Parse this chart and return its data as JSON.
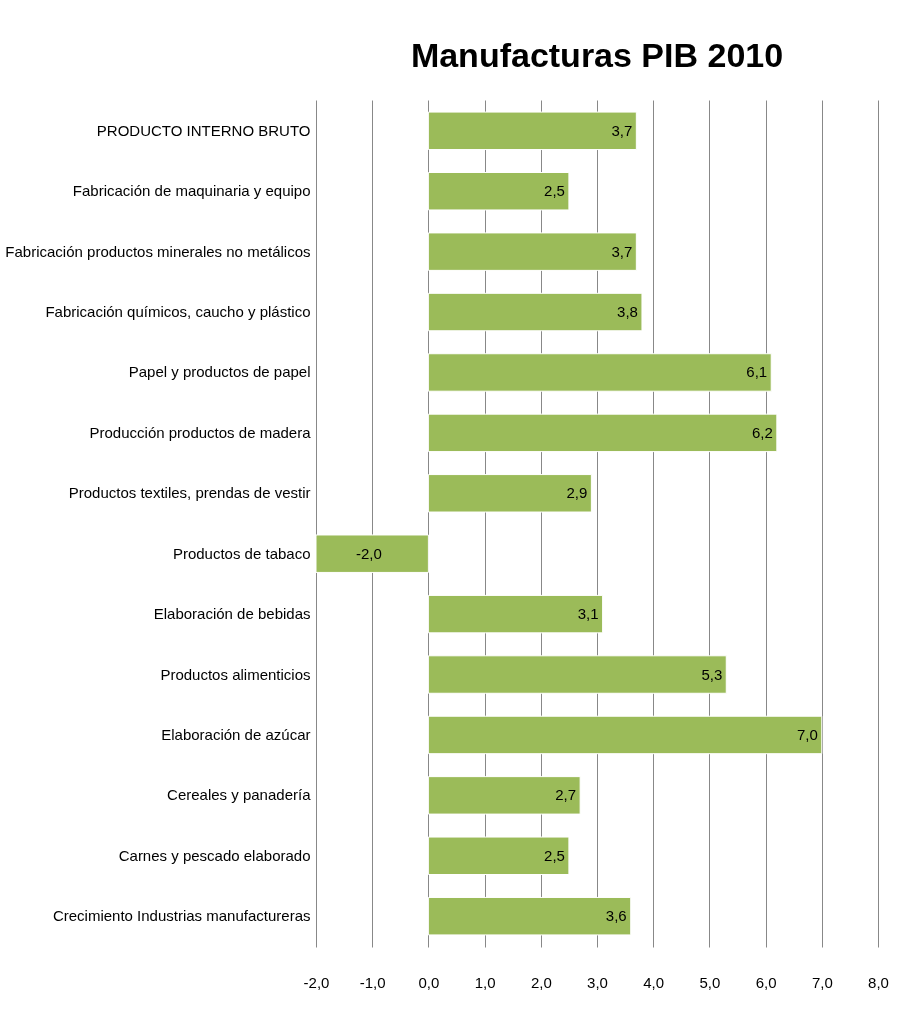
{
  "chart_data": {
    "type": "bar",
    "orientation": "horizontal",
    "title": "Manufacturas PIB 2010",
    "categories": [
      "PRODUCTO INTERNO BRUTO",
      "Fabricación de maquinaria y equipo",
      "Fabricación productos minerales no metálicos",
      "Fabricación químicos, caucho y plástico",
      "Papel y productos de papel",
      "Producción productos de madera",
      "Productos textiles, prendas de vestir",
      "Productos de tabaco",
      "Elaboración de bebidas",
      "Productos alimenticios",
      "Elaboración de azúcar",
      "Cereales y panadería",
      "Carnes y pescado elaborado",
      "Crecimiento Industrias manufactureras"
    ],
    "values": [
      3.7,
      2.5,
      3.7,
      3.8,
      6.1,
      6.2,
      2.9,
      -2.0,
      3.1,
      5.3,
      7.0,
      2.7,
      2.5,
      3.6
    ],
    "value_labels": [
      "3,7",
      "2,5",
      "3,7",
      "3,8",
      "6,1",
      "6,2",
      "2,9",
      "-2,0",
      "3,1",
      "5,3",
      "7,0",
      "2,7",
      "2,5",
      "3,6"
    ],
    "color": "#9bbb59",
    "xlim": [
      -2,
      8
    ],
    "xticks": [
      {
        "value": -2,
        "label": "-2,0"
      },
      {
        "value": -1,
        "label": "-1,0"
      },
      {
        "value": 0,
        "label": "0,0"
      },
      {
        "value": 1,
        "label": "1,0"
      },
      {
        "value": 2,
        "label": "2,0"
      },
      {
        "value": 3,
        "label": "3,0"
      },
      {
        "value": 4,
        "label": "4,0"
      },
      {
        "value": 5,
        "label": "5,0"
      },
      {
        "value": 6,
        "label": "6,0"
      },
      {
        "value": 7,
        "label": "7,0"
      },
      {
        "value": 8,
        "label": "8,0"
      }
    ],
    "grid": "x"
  }
}
